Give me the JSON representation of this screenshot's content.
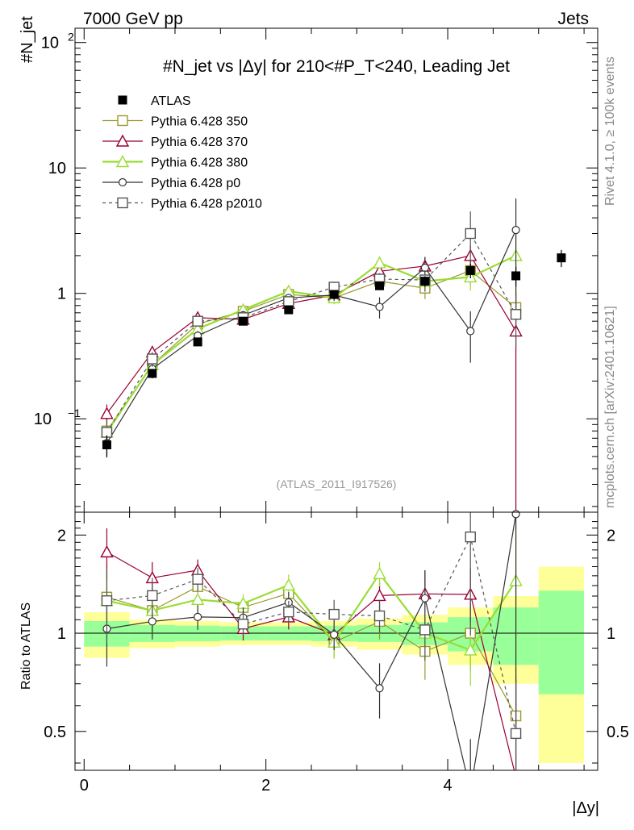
{
  "header": {
    "beam_label": "7000 GeV pp",
    "category_label": "Jets",
    "rivet_label": "Rivet 4.1.0, ≥ 100k events",
    "mcplots_label": "mcplots.cern.ch [arXiv:2401.10621]",
    "analysis_id": "(ATLAS_2011_I917526)"
  },
  "chart_data": {
    "type": "scatter",
    "title": "#N_jet vs |Δy| for 210<#P_T<240, Leading Jet",
    "xlabel": "|Δy|",
    "ylabel": "#N_jet",
    "ratio_ylabel": "Ratio to ATLAS",
    "xlim": [
      -0.1,
      5.65
    ],
    "ylim": [
      0.018,
      130
    ],
    "ratio_ylim": [
      0.38,
      2.35
    ],
    "x_ticks": [
      0,
      2,
      4
    ],
    "y_ticks": [
      {
        "v": 0.1,
        "base": "10",
        "exp": "−1"
      },
      {
        "v": 1,
        "base": "1",
        "exp": ""
      },
      {
        "v": 10,
        "base": "10",
        "exp": ""
      },
      {
        "v": 100,
        "base": "10",
        "exp": "2"
      }
    ],
    "ratio_ticks": [
      0.5,
      1,
      2
    ],
    "x": [
      0.25,
      0.75,
      1.25,
      1.75,
      2.25,
      2.75,
      3.25,
      3.75,
      4.25,
      4.75,
      5.25
    ],
    "reference": {
      "name": "ATLAS",
      "color": "#000000",
      "values": [
        0.062,
        0.23,
        0.41,
        0.6,
        0.74,
        0.98,
        1.15,
        1.25,
        1.52,
        1.38,
        1.92
      ],
      "errors": [
        0.012,
        0.02,
        0.03,
        0.04,
        0.05,
        0.07,
        0.09,
        0.12,
        0.2,
        0.25,
        0.3
      ]
    },
    "bands": {
      "inner_color": "#99ff99",
      "outer_color": "#ffff99",
      "inner": [
        0.09,
        0.06,
        0.055,
        0.05,
        0.05,
        0.055,
        0.06,
        0.08,
        0.12,
        0.2,
        0.35
      ],
      "outer": [
        0.16,
        0.1,
        0.09,
        0.08,
        0.08,
        0.09,
        0.11,
        0.14,
        0.2,
        0.3,
        0.6
      ]
    },
    "series": [
      {
        "name": "Pythia 6.428 350",
        "color": "#999933",
        "marker": "square",
        "dash": "",
        "values": [
          0.08,
          0.27,
          0.57,
          0.72,
          0.98,
          0.92,
          1.25,
          1.1,
          1.52,
          0.77,
          null
        ],
        "errors": [
          0.02,
          0.04,
          0.05,
          0.05,
          0.08,
          0.1,
          0.15,
          0.2,
          0.35,
          0.3,
          null
        ]
      },
      {
        "name": "Pythia 6.428 370",
        "color": "#990033",
        "marker": "triangle",
        "dash": "",
        "values": [
          0.11,
          0.34,
          0.64,
          0.62,
          0.83,
          0.97,
          1.5,
          1.65,
          2.0,
          0.5,
          null
        ],
        "errors": [
          0.02,
          0.04,
          0.05,
          0.05,
          0.07,
          0.1,
          0.15,
          0.3,
          0.4,
          0.5,
          null
        ]
      },
      {
        "name": "Pythia 6.428 380",
        "color": "#99dd33",
        "marker": "triangle",
        "dash": "",
        "values": [
          0.078,
          0.27,
          0.52,
          0.74,
          1.04,
          0.92,
          1.75,
          1.25,
          1.35,
          2.0,
          null
        ],
        "errors": [
          0.02,
          0.04,
          0.05,
          0.05,
          0.08,
          0.1,
          0.15,
          0.2,
          0.3,
          1.0,
          null
        ]
      },
      {
        "name": "Pythia 6.428 p0",
        "color": "#333333",
        "marker": "circle",
        "dash": "",
        "values": [
          0.064,
          0.25,
          0.46,
          0.67,
          0.92,
          0.97,
          0.78,
          1.6,
          0.5,
          3.2,
          null
        ],
        "errors": [
          0.015,
          0.03,
          0.04,
          0.05,
          0.07,
          0.1,
          0.15,
          0.35,
          0.22,
          2.5,
          null
        ]
      },
      {
        "name": "Pythia 6.428 p2010",
        "color": "#555555",
        "marker": "square",
        "dash": "4,4",
        "values": [
          0.078,
          0.3,
          0.6,
          0.64,
          0.86,
          1.12,
          1.3,
          1.28,
          3.0,
          0.68,
          null
        ],
        "errors": [
          0.02,
          0.04,
          0.05,
          0.05,
          0.07,
          0.12,
          0.15,
          0.25,
          1.5,
          0.3,
          null
        ]
      }
    ]
  }
}
